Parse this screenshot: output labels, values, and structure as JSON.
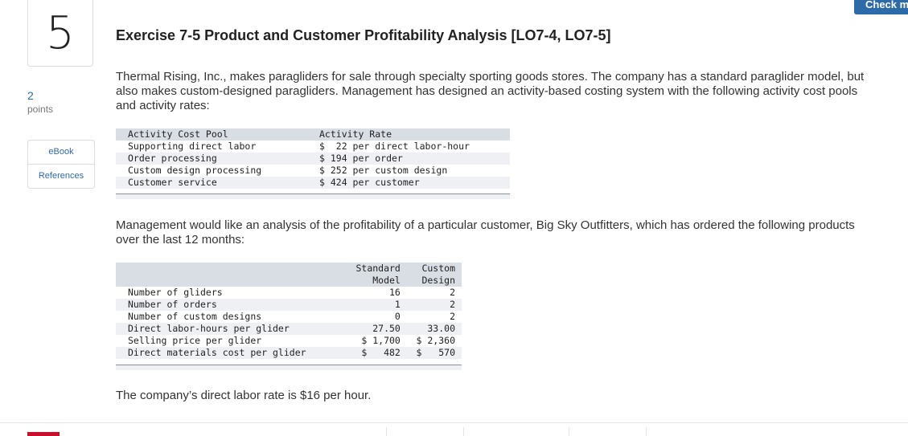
{
  "question": {
    "number": "5",
    "points_value": "2",
    "points_label": "points"
  },
  "side_links": [
    "eBook",
    "References"
  ],
  "check_button": "Check my work",
  "title": "Exercise 7-5 Product and Customer Profitability Analysis [LO7-4, LO7-5]",
  "intro": "Thermal Rising, Inc., makes paragliders for sale through specialty sporting goods stores. The company has a standard paraglider model, but also makes custom-designed paragliders. Management has designed an activity-based costing system with the following activity cost pools and activity rates:",
  "activity_table": {
    "headers": [
      "Activity Cost Pool",
      "Activity Rate"
    ],
    "rows": [
      [
        "Supporting direct labor",
        "$  22 per direct labor-hour"
      ],
      [
        "Order processing",
        "$ 194 per order"
      ],
      [
        "Custom design processing",
        "$ 252 per custom design"
      ],
      [
        "Customer service",
        "$ 424 per customer"
      ]
    ]
  },
  "middle": "Management would like an analysis of the profitability of a particular customer, Big Sky Outfitters, which has ordered the following products over the last 12 months:",
  "product_table": {
    "headers": [
      [
        "Standard",
        "Model"
      ],
      [
        "Custom",
        "Design"
      ]
    ],
    "rows": [
      [
        "Number of gliders",
        "16",
        "2"
      ],
      [
        "Number of orders",
        "1",
        "2"
      ],
      [
        "Number of custom designs",
        "0",
        "2"
      ],
      [
        "Direct labor-hours per glider",
        "27.50",
        "33.00"
      ],
      [
        "Selling price per glider",
        "$ 1,700",
        "$ 2,360"
      ],
      [
        "Direct materials cost per glider",
        "$   482",
        "$   570"
      ]
    ]
  },
  "closing": "The company’s direct labor rate is $16 per hour."
}
